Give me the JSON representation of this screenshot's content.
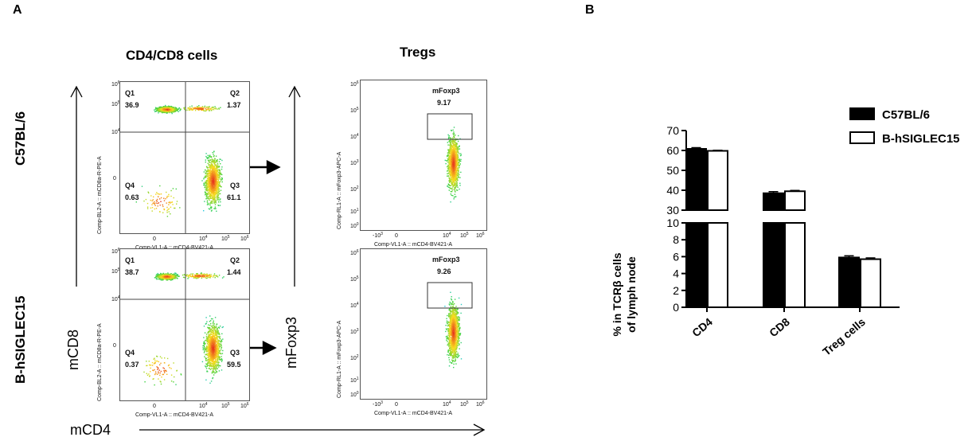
{
  "panel_a": {
    "letter": "A",
    "col_titles": [
      "CD4/CD8 cells",
      "Tregs"
    ],
    "row_labels": [
      "C57BL/6",
      "B-hSIGLEC15"
    ],
    "axis_y_left": "mCD8",
    "axis_y_right": "mFoxp3",
    "axis_x": "mCD4",
    "cd4cd8_plots": [
      {
        "quadrants": {
          "Q1": "36.9",
          "Q2": "1.37",
          "Q3": "61.1",
          "Q4": "0.63"
        },
        "xaxis": "Comp-VL1-A :: mCD4-BV421-A",
        "yaxis": "Comp-BL2-A :: mCD8a-R-PE-A"
      },
      {
        "quadrants": {
          "Q1": "38.7",
          "Q2": "1.44",
          "Q3": "59.5",
          "Q4": "0.37"
        },
        "xaxis": "Comp-VL1-A :: mCD4-BV421-A",
        "yaxis": "Comp-BL2-A :: mCD8a-R-PE-A"
      }
    ],
    "treg_plots": [
      {
        "gate_label": "mFoxp3",
        "gate_value": "9.17",
        "xaxis": "Comp-VL1-A :: mCD4-BV421-A",
        "yaxis": "Comp-RL1-A :: mFoxp3-APC-A"
      },
      {
        "gate_label": "mFoxp3",
        "gate_value": "9.26",
        "xaxis": "Comp-VL1-A :: mCD4-BV421-A",
        "yaxis": "Comp-RL1-A :: mFoxp3-APC-A"
      }
    ],
    "quadrant_names": [
      "Q1",
      "Q2",
      "Q3",
      "Q4"
    ]
  },
  "chart_data": {
    "type": "bar",
    "panel_letter": "B",
    "categories": [
      "CD4",
      "CD8",
      "Treg cells"
    ],
    "series": [
      {
        "name": "C57BL/6",
        "values": [
          60.8,
          38.5,
          5.9
        ],
        "errors": [
          0.6,
          0.8,
          0.2
        ],
        "color": "#000000",
        "fill": "solid"
      },
      {
        "name": "B-hSIGLEC15",
        "values": [
          59.8,
          39.5,
          5.7
        ],
        "errors": [
          0.3,
          0.4,
          0.15
        ],
        "color": "#000000",
        "fill": "open"
      }
    ],
    "ylabel_line1": "% in TCRβ cells",
    "ylabel_line2": "of  lymph node",
    "y_segments": [
      {
        "range": [
          0,
          10
        ],
        "ticks": [
          0,
          2,
          4,
          6,
          8,
          10
        ]
      },
      {
        "range": [
          30,
          70
        ],
        "ticks": [
          30,
          40,
          50,
          60,
          70
        ]
      }
    ],
    "legend_position": "top-right"
  }
}
